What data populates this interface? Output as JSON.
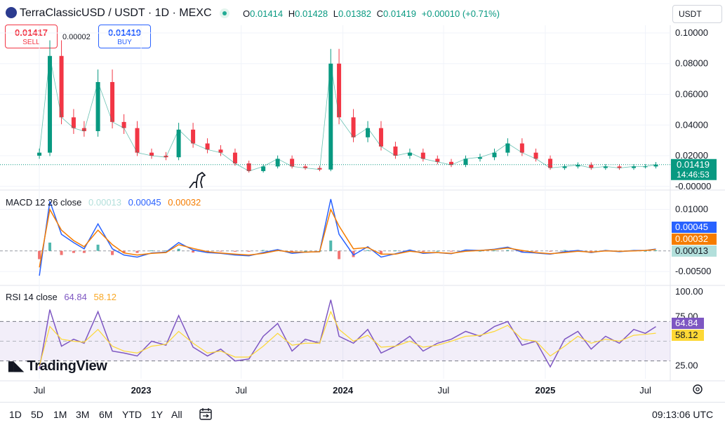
{
  "header": {
    "symbol_title": "TerraClassicUSD / USDT · 1D · MEXC",
    "ohlc": {
      "o_label": "O",
      "o_value": "0.01414",
      "h_label": "H",
      "h_value": "0.01428",
      "l_label": "L",
      "l_value": "0.01382",
      "c_label": "C",
      "c_value": "0.01419",
      "change": "+0.00010 (+0.71%)"
    },
    "sell_price": "0.01417",
    "sell_label": "SELL",
    "spread": "0.00002",
    "buy_price": "0.01419",
    "buy_label": "BUY",
    "currency": "USDT",
    "colors": {
      "up": "#089981",
      "down": "#f23645",
      "buy": "#2962ff"
    }
  },
  "chart_data": [
    {
      "type": "candlestick",
      "pane": "price",
      "x": [
        "2022-07-01",
        "2022-07-20",
        "2022-08-10",
        "2022-09-01",
        "2022-09-20",
        "2022-10-15",
        "2022-11-10",
        "2022-12-01",
        "2022-12-25",
        "2023-01-20",
        "2023-02-15",
        "2023-03-10",
        "2023-04-05",
        "2023-05-01",
        "2023-05-25",
        "2023-06-20",
        "2023-07-15",
        "2023-08-10",
        "2023-09-05",
        "2023-10-01",
        "2023-10-25",
        "2023-11-20",
        "2023-12-10",
        "2023-12-25",
        "2024-01-20",
        "2024-02-15",
        "2024-03-10",
        "2024-04-05",
        "2024-05-01",
        "2024-05-25",
        "2024-06-20",
        "2024-07-15",
        "2024-08-10",
        "2024-09-05",
        "2024-10-01",
        "2024-10-25",
        "2024-11-20",
        "2024-12-15",
        "2025-01-10",
        "2025-02-05",
        "2025-03-01",
        "2025-03-25",
        "2025-04-20",
        "2025-05-15",
        "2025-06-10",
        "2025-07-01",
        "2025-07-20"
      ],
      "close": [
        0.022,
        0.085,
        0.045,
        0.038,
        0.036,
        0.068,
        0.042,
        0.038,
        0.022,
        0.02,
        0.019,
        0.037,
        0.028,
        0.024,
        0.022,
        0.015,
        0.01,
        0.013,
        0.018,
        0.013,
        0.012,
        0.011,
        0.08,
        0.045,
        0.032,
        0.038,
        0.026,
        0.02,
        0.022,
        0.018,
        0.016,
        0.014,
        0.018,
        0.019,
        0.022,
        0.028,
        0.022,
        0.018,
        0.012,
        0.013,
        0.014,
        0.012,
        0.013,
        0.012,
        0.013,
        0.013,
        0.01419
      ],
      "y_ticks": [
        "0.10000",
        "0.08000",
        "0.06000",
        "0.04000",
        "0.02000",
        "-0.00000"
      ],
      "ylim": [
        -0.001,
        0.105
      ],
      "last_price": "0.01419",
      "countdown": "14:46:53"
    },
    {
      "type": "line",
      "pane": "macd",
      "title": "MACD 12 26 close",
      "legend_values": [
        "0.00013",
        "0.00045",
        "0.00032"
      ],
      "series": [
        {
          "name": "MACD",
          "color": "#2962ff",
          "values": [
            -0.006,
            0.012,
            0.004,
            0.002,
            0.0005,
            0.0065,
            0.0005,
            -0.001,
            -0.0015,
            -0.0005,
            -0.0003,
            0.002,
            0.0002,
            -0.0004,
            -0.0006,
            -0.001,
            -0.0012,
            -0.0004,
            0.0003,
            -0.0006,
            -0.0003,
            -0.0002,
            0.0125,
            0.004,
            -0.001,
            0.001,
            -0.0015,
            -0.0007,
            0.0002,
            -0.0006,
            -0.0004,
            -0.0007,
            0.0002,
            0.0001,
            0.0004,
            0.0009,
            -0.0003,
            -0.0005,
            -0.0008,
            -0.0002,
            0.0001,
            -0.0004,
            0.0001,
            -0.0002,
            0.0001,
            0.0001,
            0.00045
          ]
        },
        {
          "name": "Signal",
          "color": "#f57c00",
          "values": [
            -0.004,
            0.01,
            0.005,
            0.0025,
            0.001,
            0.005,
            0.0015,
            -0.0005,
            -0.001,
            -0.0006,
            -0.0004,
            0.0015,
            0.0006,
            -0.0002,
            -0.0005,
            -0.0008,
            -0.001,
            -0.0006,
            0.0001,
            -0.0003,
            -0.0003,
            -0.0002,
            0.01,
            0.006,
            0.0005,
            0.0008,
            -0.0008,
            -0.0008,
            -0.0001,
            -0.0004,
            -0.0004,
            -0.0006,
            -0.0001,
            0.0001,
            0.0003,
            0.0007,
            0.0001,
            -0.0004,
            -0.0007,
            -0.0004,
            -0.0001,
            -0.0003,
            0,
            -0.0001,
            0,
            0.0001,
            0.00032
          ]
        }
      ],
      "y_ticks": [
        "0.01000",
        "-0.00500"
      ],
      "ylim": [
        -0.0075,
        0.0135
      ]
    },
    {
      "type": "line",
      "pane": "rsi",
      "title": "RSI 14 close",
      "legend_values": [
        "64.84",
        "58.12"
      ],
      "series": [
        {
          "name": "RSI",
          "color": "#7e57c2",
          "values": [
            22,
            82,
            45,
            52,
            48,
            80,
            40,
            38,
            35,
            50,
            46,
            76,
            44,
            35,
            42,
            30,
            32,
            55,
            68,
            40,
            52,
            48,
            92,
            55,
            48,
            62,
            38,
            45,
            55,
            40,
            48,
            52,
            60,
            55,
            65,
            70,
            46,
            50,
            24,
            52,
            60,
            42,
            55,
            48,
            62,
            58,
            64.84
          ]
        },
        {
          "name": "RSI-based MA",
          "color": "#fdd835",
          "values": [
            25,
            65,
            52,
            50,
            49,
            62,
            45,
            40,
            38,
            45,
            47,
            60,
            48,
            38,
            40,
            34,
            34,
            45,
            58,
            46,
            48,
            48,
            80,
            62,
            50,
            56,
            44,
            45,
            50,
            44,
            46,
            50,
            55,
            56,
            60,
            66,
            52,
            50,
            35,
            45,
            55,
            48,
            52,
            50,
            56,
            57,
            58.12
          ]
        }
      ],
      "y_ticks": [
        "100.00",
        "75.00",
        "25.00"
      ],
      "ylim": [
        12,
        103
      ],
      "band": [
        30,
        70
      ]
    }
  ],
  "x_axis_labels": [
    "Jul",
    "2023",
    "Jul",
    "2024",
    "Jul",
    "2025",
    "Jul"
  ],
  "branding": "TradingView",
  "bottom_bar": {
    "timeframes": [
      "1D",
      "5D",
      "1M",
      "3M",
      "6M",
      "YTD",
      "1Y",
      "All"
    ],
    "clock": "09:13:06 UTC"
  },
  "icons": {
    "calendar": "calendar-icon",
    "settings": "gear-icon",
    "dino": "dinosaur-icon"
  }
}
